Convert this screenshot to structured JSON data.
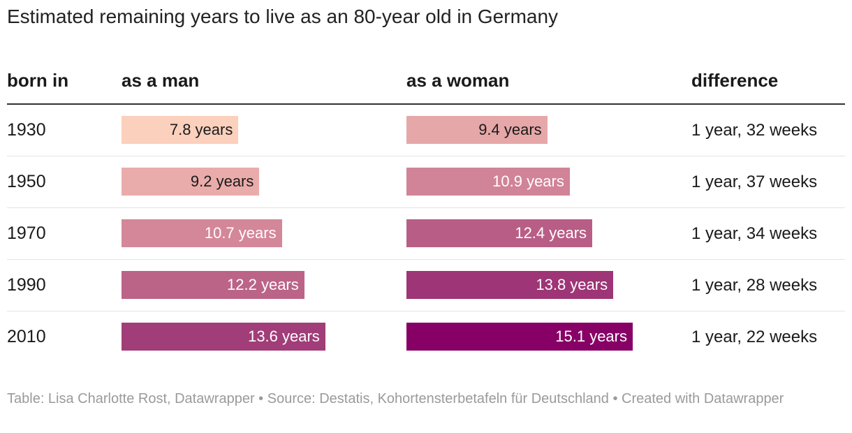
{
  "title": "Estimated remaining years to live as an 80-year old in Germany",
  "headers": {
    "born_in": "born in",
    "man": "as a man",
    "woman": "as a woman",
    "difference": "difference"
  },
  "rows": [
    {
      "year": "1930",
      "man_label": "7.8 years",
      "woman_label": "9.4 years",
      "difference": "1 year, 32 weeks"
    },
    {
      "year": "1950",
      "man_label": "9.2 years",
      "woman_label": "10.9 years",
      "difference": "1 year, 37 weeks"
    },
    {
      "year": "1970",
      "man_label": "10.7 years",
      "woman_label": "12.4 years",
      "difference": "1 year, 34 weeks"
    },
    {
      "year": "1990",
      "man_label": "12.2 years",
      "woman_label": "13.8 years",
      "difference": "1 year, 28 weeks"
    },
    {
      "year": "2010",
      "man_label": "13.6 years",
      "woman_label": "15.1 years",
      "difference": "1 year, 22 weeks"
    }
  ],
  "chart_data": {
    "type": "table",
    "title": "Estimated remaining years to live as an 80-year old in Germany",
    "categories": [
      "1930",
      "1950",
      "1970",
      "1990",
      "2010"
    ],
    "series": [
      {
        "name": "as a man",
        "values": [
          7.8,
          9.2,
          10.7,
          12.2,
          13.6
        ]
      },
      {
        "name": "as a woman",
        "values": [
          9.4,
          10.9,
          12.4,
          13.8,
          15.1
        ]
      }
    ],
    "xlim": [
      0,
      15.1
    ],
    "colors": [
      "#fbd0bc",
      "#e8aaaa",
      "#d48799",
      "#bc6488",
      "#a03c78",
      "#870066"
    ],
    "light_text_color": "#1a1a1a",
    "dark_text_color": "#ffffff"
  },
  "footer": "Table: Lisa Charlotte Rost, Datawrapper • Source: Destatis, Kohortensterbetafeln für Deutschland • Created with Datawrapper"
}
